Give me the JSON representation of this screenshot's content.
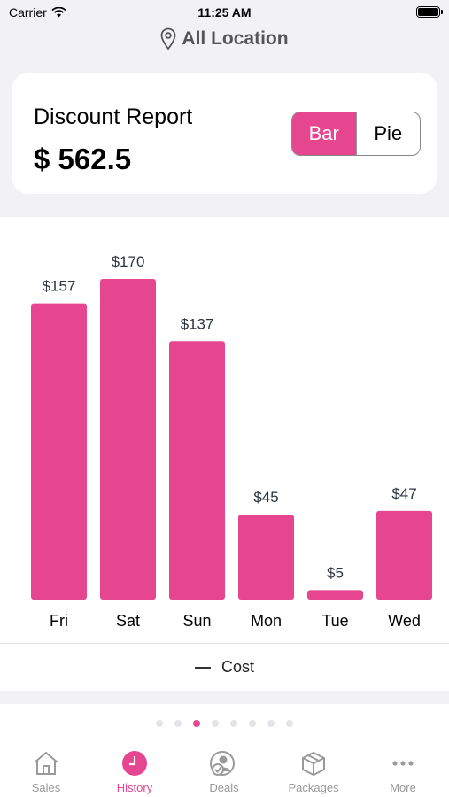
{
  "status_bar": {
    "carrier": "Carrier",
    "time": "11:25 AM"
  },
  "location": {
    "label": "All Location"
  },
  "report": {
    "title": "Discount Report",
    "total": "$ 562.5",
    "toggle": {
      "bar_label": "Bar",
      "pie_label": "Pie",
      "selected": "Bar"
    }
  },
  "colors": {
    "accent": "#e6458f",
    "bar": "#e6458f",
    "axis": "#888888"
  },
  "chart_data": {
    "type": "bar",
    "categories": [
      "Fri",
      "Sat",
      "Sun",
      "Mon",
      "Tue",
      "Wed"
    ],
    "series": [
      {
        "name": "Cost",
        "values": [
          157,
          170,
          137,
          45,
          5,
          47
        ]
      }
    ],
    "data_labels": [
      "$157",
      "$170",
      "$137",
      "$45",
      "$5",
      "$47"
    ],
    "ylim": [
      0,
      170
    ],
    "legend": "bottom-center",
    "grid": false
  },
  "legend": {
    "label": "Cost"
  },
  "pager": {
    "count": 8,
    "active_index": 2
  },
  "tabs": [
    {
      "label": "Sales",
      "icon": "home-icon",
      "active": false
    },
    {
      "label": "History",
      "icon": "clock-icon",
      "active": true
    },
    {
      "label": "Deals",
      "icon": "deals-user-icon",
      "active": false
    },
    {
      "label": "Packages",
      "icon": "package-icon",
      "active": false
    },
    {
      "label": "More",
      "icon": "more-dots-icon",
      "active": false
    }
  ]
}
